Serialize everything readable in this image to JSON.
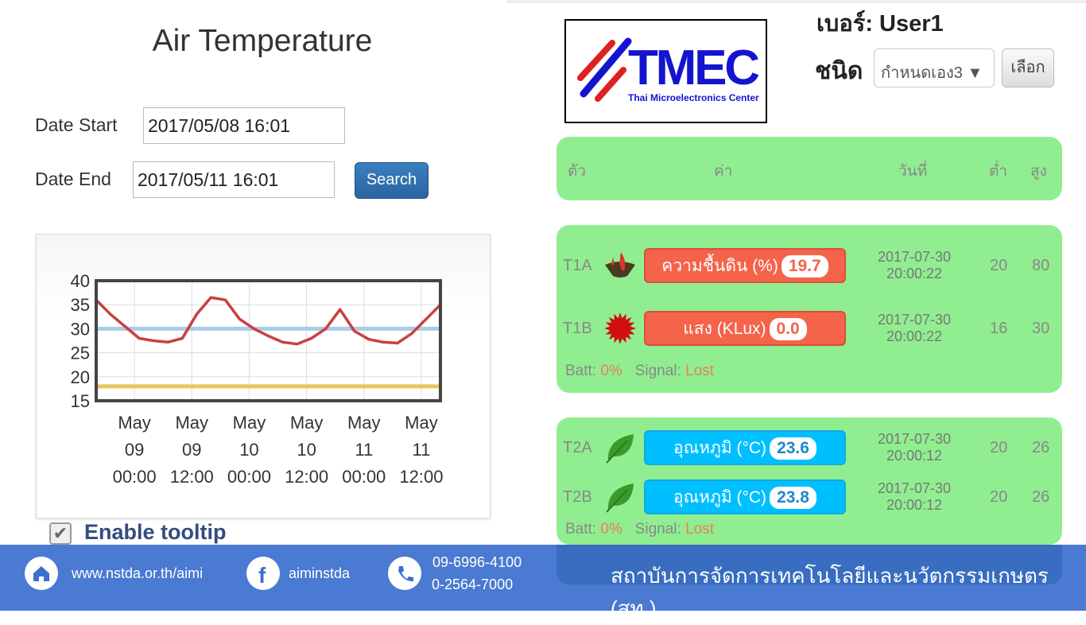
{
  "left": {
    "title": "Air Temperature",
    "date_start_label": "Date Start",
    "date_start_value": "2017/05/08 16:01",
    "date_end_label": "Date End",
    "date_end_value": "2017/05/11 16:01",
    "search_label": "Search",
    "enable_tooltip_label": "Enable tooltip",
    "enable_tooltip_checked": true
  },
  "chart_data": {
    "type": "line",
    "ylim": [
      15,
      40
    ],
    "yticks": [
      "40",
      "35",
      "30",
      "25",
      "20",
      "15"
    ],
    "xticks": [
      [
        "May",
        "09",
        "00:00"
      ],
      [
        "May",
        "09",
        "12:00"
      ],
      [
        "May",
        "10",
        "00:00"
      ],
      [
        "May",
        "10",
        "12:00"
      ],
      [
        "May",
        "11",
        "00:00"
      ],
      [
        "May",
        "11",
        "12:00"
      ]
    ],
    "xrange": [
      "2017-05-08 16:00",
      "2017-05-11 16:00"
    ],
    "grid": true,
    "series": [
      {
        "color": "#c94040",
        "x": [
          "2017-05-08 16:00",
          "2017-05-08 19:00",
          "2017-05-08 22:00",
          "2017-05-09 01:00",
          "2017-05-09 04:00",
          "2017-05-09 07:00",
          "2017-05-09 10:00",
          "2017-05-09 13:00",
          "2017-05-09 16:00",
          "2017-05-09 19:00",
          "2017-05-09 22:00",
          "2017-05-10 01:00",
          "2017-05-10 04:00",
          "2017-05-10 07:00",
          "2017-05-10 10:00",
          "2017-05-10 13:00",
          "2017-05-10 16:00",
          "2017-05-10 19:00",
          "2017-05-10 22:00",
          "2017-05-11 01:00",
          "2017-05-11 04:00",
          "2017-05-11 07:00",
          "2017-05-11 10:00",
          "2017-05-11 13:00",
          "2017-05-11 16:00"
        ],
        "values": [
          36,
          33,
          30.5,
          28,
          27.5,
          27.2,
          28,
          33,
          36.5,
          36,
          32,
          30,
          28.5,
          27.2,
          26.8,
          28,
          30,
          34,
          29.5,
          27.8,
          27.2,
          27,
          29,
          32,
          35
        ]
      }
    ],
    "reference_lines": [
      {
        "value": 30,
        "color": "#a9cde6"
      },
      {
        "value": 18,
        "color": "#e8c65a"
      }
    ]
  },
  "right": {
    "logo_text": "TMEC",
    "logo_subtext": "Thai Microelectronics Center",
    "user_label": "เบอร์: User1",
    "type_label": "ชนิด",
    "type_select_value": "กำหนดเอง3 ▼",
    "choose_label": "เลือก",
    "headers": {
      "id": "ตัว",
      "value": "ค่า",
      "date": "วันที่",
      "low": "ต่ำ",
      "high": "สูง"
    },
    "groups": [
      {
        "rows": [
          {
            "id": "T1A",
            "icon": "soil-moisture-icon",
            "label": "ความชื้นดิน (%)",
            "value": "19.7",
            "color": "#f4634a",
            "date": "2017-07-30",
            "time": "20:00:22",
            "low": "20",
            "high": "80"
          },
          {
            "id": "T1B",
            "icon": "light-sun-icon",
            "label": "แสง (KLux)",
            "value": "0.0",
            "color": "#f4634a",
            "date": "2017-07-30",
            "time": "20:00:22",
            "low": "16",
            "high": "30"
          }
        ],
        "batt_label": "Batt:",
        "batt": "0%",
        "signal_label": "Signal:",
        "signal": "Lost"
      },
      {
        "rows": [
          {
            "id": "T2A",
            "icon": "leaf-icon",
            "label": "อุณหภูมิ (°C)",
            "value": "23.6",
            "color": "#00bfff",
            "date": "2017-07-30",
            "time": "20:00:12",
            "low": "20",
            "high": "26"
          },
          {
            "id": "T2B",
            "icon": "leaf-icon",
            "label": "อุณหภูมิ (°C)",
            "value": "23.8",
            "color": "#00bfff",
            "date": "2017-07-30",
            "time": "20:00:12",
            "low": "20",
            "high": "26"
          }
        ],
        "batt_label": "Batt:",
        "batt": "0%",
        "signal_label": "Signal:",
        "signal": "Lost"
      }
    ]
  },
  "footer": {
    "website": "www.nstda.or.th/aimi",
    "facebook": "aiminstda",
    "phone1": "09-6996-4100",
    "phone2": "0-2564-7000",
    "organization": "สถาบันการจัดการเทคโนโลยีและนวัตกรรมเกษตร (สท.)"
  }
}
